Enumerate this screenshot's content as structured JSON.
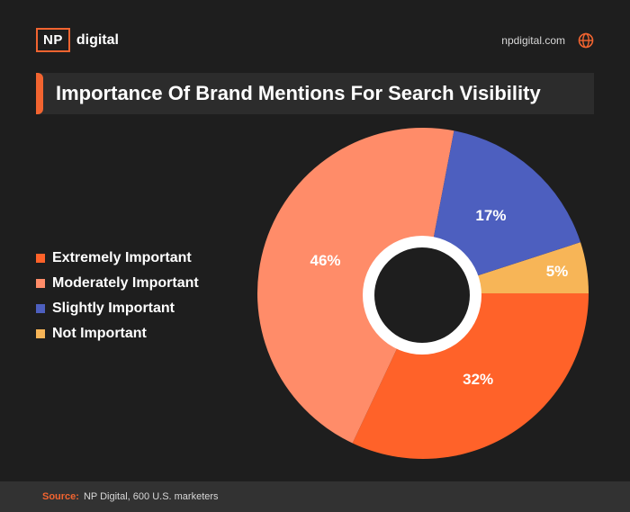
{
  "header": {
    "logo_badge": "NP",
    "logo_word": "digital",
    "site": "npdigital.com",
    "site_icon": "globe-icon"
  },
  "colors": {
    "accent": "#f26430",
    "extremely": "#ff6229",
    "moderately": "#ff8c69",
    "slightly": "#4d5fbf",
    "not": "#f7b557"
  },
  "chart_data": {
    "type": "pie",
    "title": "Importance Of Brand Mentions For Search Visibility",
    "legend_position": "left",
    "slices": [
      {
        "name": "Extremely Important",
        "value": 32,
        "label": "32%",
        "color": "#ff6229"
      },
      {
        "name": "Moderately Important",
        "value": 46,
        "label": "46%",
        "color": "#ff8c69"
      },
      {
        "name": "Slightly Important",
        "value": 17,
        "label": "17%",
        "color": "#4d5fbf"
      },
      {
        "name": "Not Important",
        "value": 5,
        "label": "5%",
        "color": "#f7b557"
      }
    ]
  },
  "footer": {
    "source_label": "Source:",
    "source_text": "NP Digital, 600 U.S. marketers"
  }
}
